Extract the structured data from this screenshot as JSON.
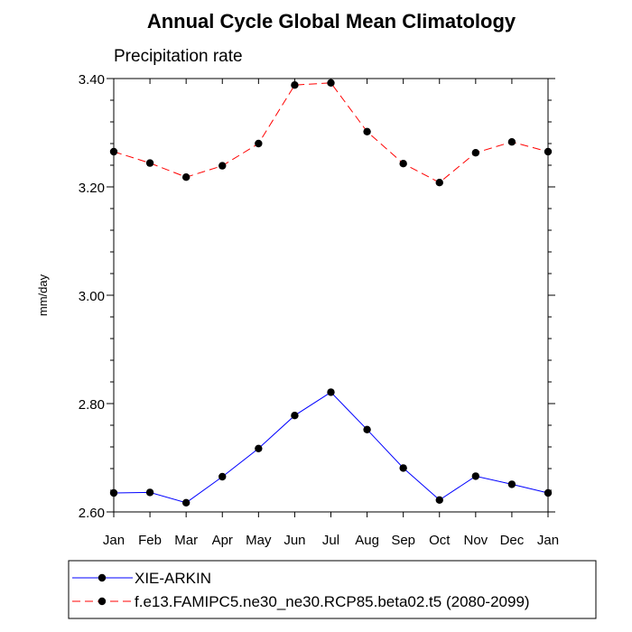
{
  "chart_data": {
    "type": "line",
    "title": "Annual Cycle Global Mean Climatology",
    "subtitle": "Precipitation rate",
    "xlabel": "",
    "ylabel": "mm/day",
    "categories": [
      "Jan",
      "Feb",
      "Mar",
      "Apr",
      "May",
      "Jun",
      "Jul",
      "Aug",
      "Sep",
      "Oct",
      "Nov",
      "Dec",
      "Jan"
    ],
    "ylim": [
      2.6,
      3.4
    ],
    "yticks": [
      2.6,
      2.8,
      3.0,
      3.2,
      3.4
    ],
    "ytick_labels": [
      "2.60",
      "2.80",
      "3.00",
      "3.20",
      "3.40"
    ],
    "yminor_step": 0.04,
    "grid": false,
    "legend_position": "bottom",
    "series": [
      {
        "name": "XIE-ARKIN",
        "color": "#0000ff",
        "dash": "solid",
        "marker": "filled-circle",
        "values": [
          2.635,
          2.636,
          2.617,
          2.665,
          2.717,
          2.778,
          2.821,
          2.752,
          2.681,
          2.622,
          2.666,
          2.651,
          2.635
        ]
      },
      {
        "name": "f.e13.FAMIPC5.ne30_ne30.RCP85.beta02.t5 (2080-2099)",
        "color": "#ff0000",
        "dash": "dashed",
        "marker": "filled-circle",
        "values": [
          3.265,
          3.244,
          3.218,
          3.239,
          3.28,
          3.388,
          3.392,
          3.302,
          3.243,
          3.208,
          3.263,
          3.283,
          3.265
        ]
      }
    ]
  }
}
